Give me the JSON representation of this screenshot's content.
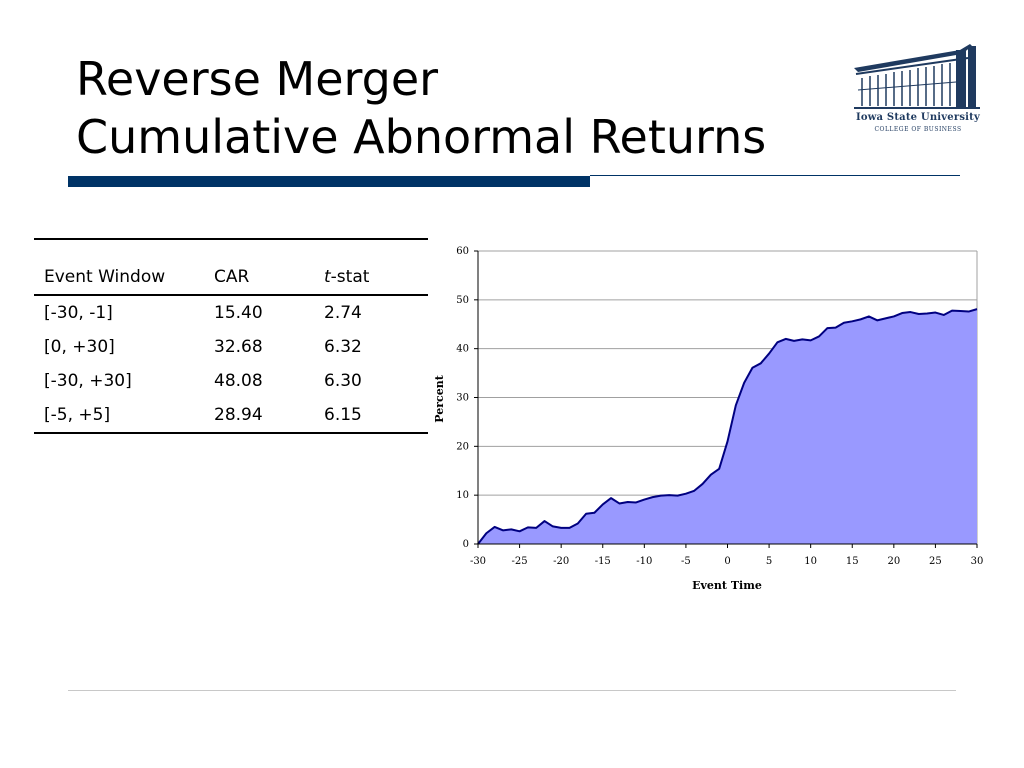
{
  "slide": {
    "title_line1": "Reverse Merger",
    "title_line2": "Cumulative Abnormal Returns"
  },
  "logo": {
    "name": "Iowa State University",
    "subtitle": "COLLEGE OF BUSINESS",
    "color": "#1f3a5f"
  },
  "table": {
    "headers": [
      "Event Window",
      "CAR",
      "t",
      "-stat"
    ],
    "rows": [
      [
        "[-30, -1]",
        "15.40",
        "2.74"
      ],
      [
        "[0, +30]",
        "32.68",
        "6.32"
      ],
      [
        "[-30, +30]",
        "48.08",
        "6.30"
      ],
      [
        "[-5, +5]",
        "28.94",
        "6.15"
      ]
    ]
  },
  "colors": {
    "accent_bar": "#003366",
    "area_fill": "#9999ff",
    "area_line": "#000080"
  },
  "chart_data": {
    "type": "area",
    "xlabel": "Event Time",
    "ylabel": "Percent",
    "xlim": [
      -30,
      30
    ],
    "ylim": [
      0,
      60
    ],
    "x_ticks": [
      "-30",
      "-25",
      "-20",
      "-15",
      "-10",
      "-5",
      "0",
      "5",
      "10",
      "15",
      "20",
      "25",
      "30"
    ],
    "y_ticks": [
      "0",
      "10",
      "20",
      "30",
      "40",
      "50",
      "60"
    ],
    "grid": "horizontal",
    "x": [
      -30,
      -29,
      -28,
      -27,
      -26,
      -25,
      -24,
      -23,
      -22,
      -21,
      -20,
      -19,
      -18,
      -17,
      -16,
      -15,
      -14,
      -13,
      -12,
      -11,
      -10,
      -9,
      -8,
      -7,
      -6,
      -5,
      -4,
      -3,
      -2,
      -1,
      0,
      1,
      2,
      3,
      4,
      5,
      6,
      7,
      8,
      9,
      10,
      11,
      12,
      13,
      14,
      15,
      16,
      17,
      18,
      19,
      20,
      21,
      22,
      23,
      24,
      25,
      26,
      27,
      28,
      29,
      30
    ],
    "series": [
      {
        "values": [
          0.0,
          2.2,
          3.5,
          2.8,
          3.0,
          2.6,
          3.4,
          3.3,
          4.7,
          3.6,
          3.3,
          3.3,
          4.2,
          6.2,
          6.4,
          8.1,
          9.4,
          8.3,
          8.6,
          8.5,
          9.1,
          9.6,
          9.9,
          10.0,
          9.9,
          10.3,
          10.9,
          12.3,
          14.2,
          15.4,
          21.0,
          28.4,
          33.0,
          36.1,
          37.0,
          39.0,
          41.3,
          42.0,
          41.6,
          41.9,
          41.7,
          42.5,
          44.2,
          44.3,
          45.3,
          45.6,
          46.0,
          46.6,
          45.8,
          46.2,
          46.6,
          47.3,
          47.5,
          47.1,
          47.2,
          47.4,
          46.9,
          47.8,
          47.7,
          47.6,
          48.1
        ]
      }
    ]
  }
}
